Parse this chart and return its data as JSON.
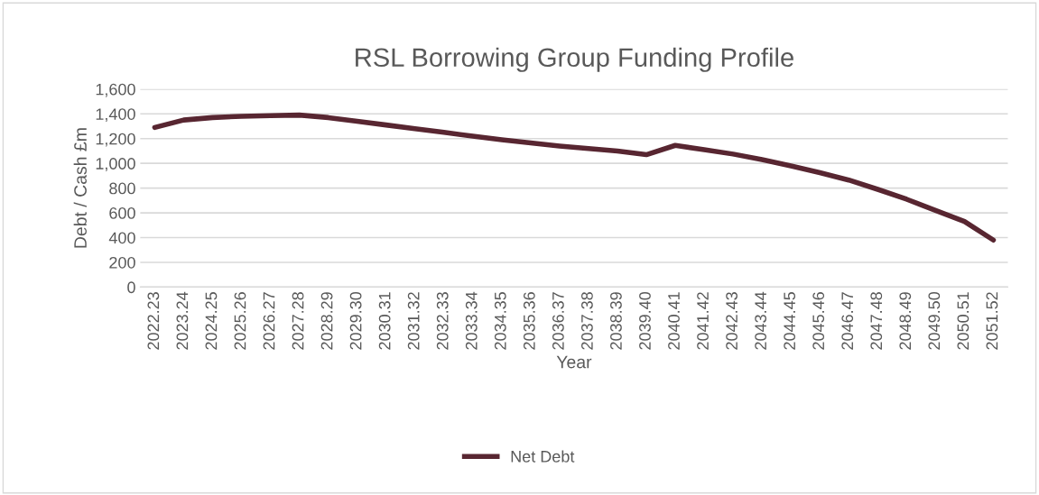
{
  "chart_data": {
    "type": "line",
    "title": "RSL Borrowing Group Funding Profile",
    "xlabel": "Year",
    "ylabel": "Debt / Cash £m",
    "categories": [
      "2022.23",
      "2023.24",
      "2024.25",
      "2025.26",
      "2026.27",
      "2027.28",
      "2028.29",
      "2029.30",
      "2030.31",
      "2031.32",
      "2032.33",
      "2033.34",
      "2034.35",
      "2035.36",
      "2036.37",
      "2037.38",
      "2038.39",
      "2039.40",
      "2040.41",
      "2041.42",
      "2042.43",
      "2043.44",
      "2044.45",
      "2045.46",
      "2046.47",
      "2047.48",
      "2048.49",
      "2049.50",
      "2050.51",
      "2051.52"
    ],
    "series": [
      {
        "name": "Net Debt",
        "color": "#582631",
        "values": [
          1290,
          1350,
          1370,
          1380,
          1385,
          1390,
          1370,
          1340,
          1310,
          1280,
          1250,
          1220,
          1190,
          1165,
          1140,
          1120,
          1100,
          1070,
          1145,
          1110,
          1075,
          1030,
          980,
          925,
          865,
          790,
          710,
          620,
          530,
          380
        ]
      }
    ],
    "ylim": [
      0,
      1600
    ],
    "yticks": [
      {
        "value": 0,
        "label": "0"
      },
      {
        "value": 200,
        "label": "200"
      },
      {
        "value": 400,
        "label": "400"
      },
      {
        "value": 600,
        "label": "600"
      },
      {
        "value": 800,
        "label": "800"
      },
      {
        "value": 1000,
        "label": "1,000"
      },
      {
        "value": 1200,
        "label": "1,200"
      },
      {
        "value": 1400,
        "label": "1,400"
      },
      {
        "value": 1600,
        "label": "1,600"
      }
    ],
    "grid": "y",
    "legend": "bottom",
    "marker": "none",
    "line_style": "solid"
  }
}
